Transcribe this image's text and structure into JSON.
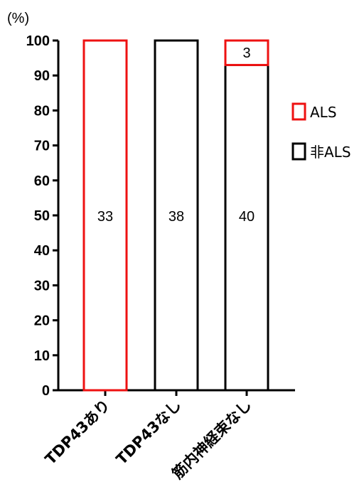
{
  "chart_data": {
    "type": "bar",
    "stacked": true,
    "y_unit_label": "(%)",
    "ylim": [
      0,
      100
    ],
    "yticks": [
      0,
      10,
      20,
      30,
      40,
      50,
      60,
      70,
      80,
      90,
      100
    ],
    "categories": [
      "TDP43あり",
      "TDP43なし",
      "筋内神経束なし"
    ],
    "series": [
      {
        "name": "非ALS",
        "color": "#000000",
        "values": [
          0,
          100,
          93
        ],
        "counts": [
          null,
          "38",
          "40"
        ]
      },
      {
        "name": "ALS",
        "color": "#ee1111",
        "values": [
          100,
          0,
          7
        ],
        "counts": [
          "33",
          null,
          "3"
        ]
      }
    ],
    "legend_position": "right",
    "grid": false
  }
}
